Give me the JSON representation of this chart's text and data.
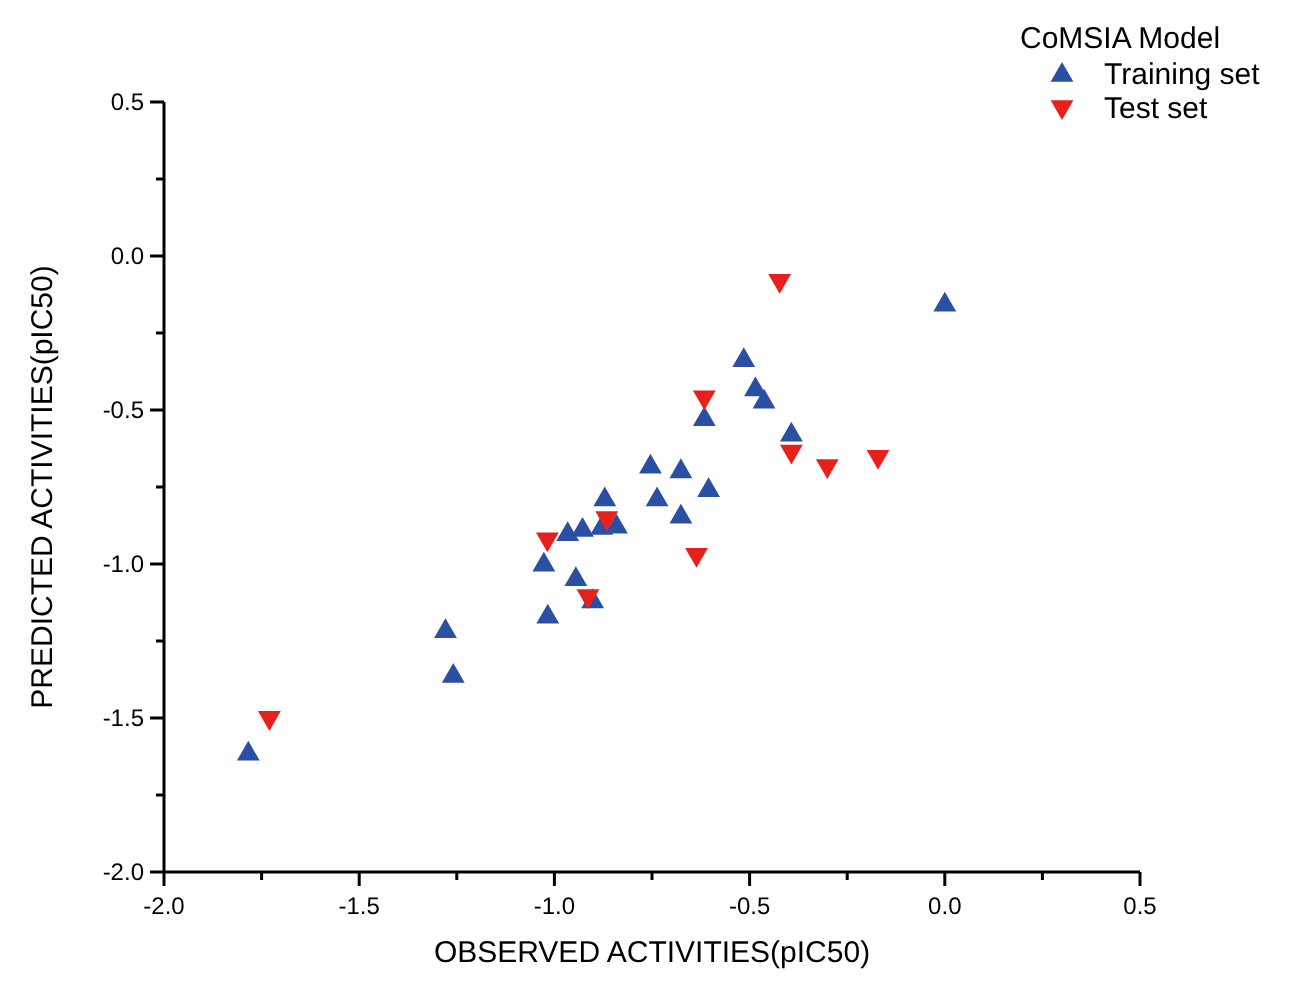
{
  "chart_data": {
    "type": "scatter",
    "xlabel": "OBSERVED ACTIVITIES(pIC50)",
    "ylabel": "PREDICTED ACTIVITIES(pIC50)",
    "legend_title": "CoMSIA Model",
    "legend": "top right",
    "grid": false,
    "xlim": [
      -2.0,
      0.5
    ],
    "ylim": [
      -2.0,
      0.5
    ],
    "xticks": [
      {
        "value": -2.0,
        "label": "-2.0"
      },
      {
        "value": -1.75,
        "label": null
      },
      {
        "value": -1.5,
        "label": "-1.5"
      },
      {
        "value": -1.25,
        "label": null
      },
      {
        "value": -1.0,
        "label": "-1.0"
      },
      {
        "value": -0.75,
        "label": null
      },
      {
        "value": -0.5,
        "label": "-0.5"
      },
      {
        "value": -0.25,
        "label": null
      },
      {
        "value": 0,
        "label": "0.0"
      },
      {
        "value": 0.25,
        "label": null
      },
      {
        "value": 0.5,
        "label": "0.5"
      }
    ],
    "yticks": [
      {
        "value": -2.0,
        "label": "-2.0"
      },
      {
        "value": -1.75,
        "label": null
      },
      {
        "value": -1.5,
        "label": "-1.5"
      },
      {
        "value": -1.25,
        "label": null
      },
      {
        "value": -1.0,
        "label": "-1.0"
      },
      {
        "value": -0.75,
        "label": null
      },
      {
        "value": -0.5,
        "label": "-0.5"
      },
      {
        "value": -0.25,
        "label": null
      },
      {
        "value": 0,
        "label": "0.0"
      },
      {
        "value": 0.25,
        "label": null
      },
      {
        "value": 0.5,
        "label": "0.5"
      }
    ],
    "series": [
      {
        "name": "Training set",
        "color": "#2a4fa3",
        "marker": "triangle",
        "x": [
          0.0,
          -0.515,
          -0.485,
          -0.463,
          -0.616,
          -0.393,
          -0.754,
          -0.676,
          -0.605,
          -0.737,
          -0.676,
          -0.871,
          -0.879,
          -0.841,
          -0.928,
          -0.966,
          -1.027,
          -0.945,
          -0.902,
          -1.017,
          -1.279,
          -1.259,
          -1.784
        ],
        "values": [
          -0.155,
          -0.335,
          -0.43,
          -0.47,
          -0.527,
          -0.577,
          -0.681,
          -0.696,
          -0.757,
          -0.787,
          -0.843,
          -0.787,
          -0.88,
          -0.876,
          -0.886,
          -0.9,
          -0.999,
          -1.046,
          -1.118,
          -1.168,
          -1.215,
          -1.36,
          -1.613
        ]
      },
      {
        "name": "Test set",
        "color": "#e8201c",
        "marker": "triangle-down",
        "x": [
          -0.423,
          -0.616,
          -0.393,
          -0.301,
          -0.171,
          -0.866,
          -1.018,
          -0.636,
          -0.914,
          -1.73
        ],
        "values": [
          -0.084,
          -0.462,
          -0.638,
          -0.685,
          -0.655,
          -0.854,
          -0.923,
          -0.973,
          -1.107,
          -1.503
        ]
      }
    ]
  }
}
